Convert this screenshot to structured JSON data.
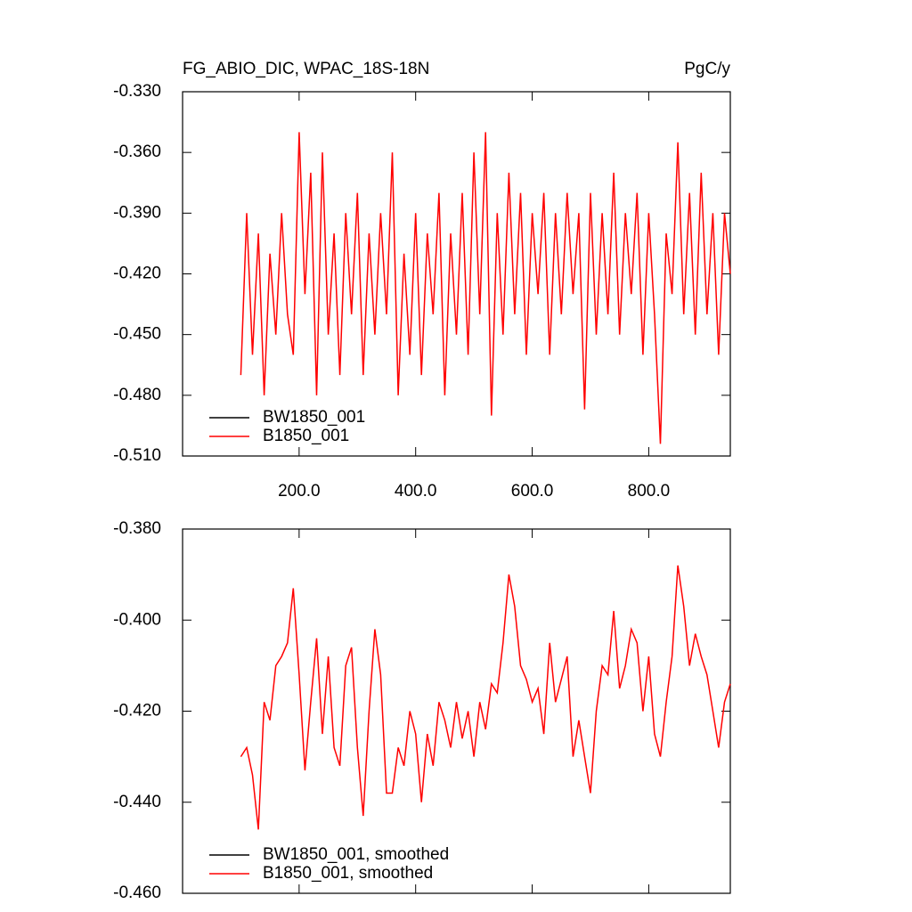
{
  "chart_data": [
    {
      "type": "line",
      "title": "FG_ABIO_DIC, WPAC_18S-18N",
      "units": "PgC/y",
      "x": [
        100,
        110,
        120,
        130,
        140,
        150,
        160,
        170,
        180,
        190,
        200,
        210,
        220,
        230,
        240,
        250,
        260,
        270,
        280,
        290,
        300,
        310,
        320,
        330,
        340,
        350,
        360,
        370,
        380,
        390,
        400,
        410,
        420,
        430,
        440,
        450,
        460,
        470,
        480,
        490,
        500,
        510,
        520,
        530,
        540,
        550,
        560,
        570,
        580,
        590,
        600,
        610,
        620,
        630,
        640,
        650,
        660,
        670,
        680,
        690,
        700,
        710,
        720,
        730,
        740,
        750,
        760,
        770,
        780,
        790,
        800,
        810,
        820,
        830,
        840,
        850,
        860,
        870,
        880,
        890,
        900,
        910,
        920,
        930,
        940
      ],
      "series": [
        {
          "name": "BW1850_001",
          "color": "#000000",
          "values": [
            null,
            null,
            null,
            null,
            null,
            null,
            null,
            null,
            null,
            null,
            null,
            null,
            null,
            null,
            null,
            null,
            null,
            null,
            null,
            null,
            null,
            null,
            null,
            null,
            null,
            null,
            null,
            null,
            null,
            null,
            null,
            null,
            null,
            null,
            null,
            null,
            null,
            null,
            null,
            null,
            null,
            null,
            null,
            null,
            null,
            null,
            null,
            null,
            null,
            null,
            null,
            null,
            null,
            null,
            null,
            null,
            null,
            null,
            null,
            null,
            null,
            null,
            null,
            null,
            null,
            null,
            null,
            null,
            null,
            null,
            null,
            null,
            null,
            null,
            null,
            null,
            null,
            null,
            null,
            null,
            null,
            null,
            null,
            null,
            null
          ]
        },
        {
          "name": "B1850_001",
          "color": "#ff0000",
          "values": [
            -0.47,
            -0.39,
            -0.46,
            -0.4,
            -0.48,
            -0.41,
            -0.45,
            -0.39,
            -0.44,
            -0.46,
            -0.35,
            -0.43,
            -0.37,
            -0.48,
            -0.36,
            -0.45,
            -0.4,
            -0.47,
            -0.39,
            -0.44,
            -0.38,
            -0.47,
            -0.4,
            -0.45,
            -0.39,
            -0.44,
            -0.36,
            -0.48,
            -0.41,
            -0.46,
            -0.39,
            -0.47,
            -0.4,
            -0.44,
            -0.38,
            -0.48,
            -0.4,
            -0.45,
            -0.38,
            -0.46,
            -0.36,
            -0.44,
            -0.35,
            -0.49,
            -0.39,
            -0.45,
            -0.37,
            -0.44,
            -0.38,
            -0.46,
            -0.39,
            -0.43,
            -0.38,
            -0.46,
            -0.39,
            -0.44,
            -0.38,
            -0.43,
            -0.39,
            -0.487,
            -0.38,
            -0.45,
            -0.39,
            -0.44,
            -0.37,
            -0.45,
            -0.39,
            -0.43,
            -0.38,
            -0.46,
            -0.39,
            -0.44,
            -0.504,
            -0.4,
            -0.43,
            -0.355,
            -0.44,
            -0.38,
            -0.45,
            -0.37,
            -0.44,
            -0.39,
            -0.46,
            -0.39,
            -0.42
          ]
        }
      ],
      "xlim": [
        0,
        940
      ],
      "xticks": [
        {
          "value": 200,
          "label": "200.0"
        },
        {
          "value": 400,
          "label": "400.0"
        },
        {
          "value": 600,
          "label": "600.0"
        },
        {
          "value": 800,
          "label": "800.0"
        }
      ],
      "ylim": [
        -0.51,
        -0.33
      ],
      "yticks": [
        {
          "value": -0.51,
          "label": "-0.510"
        },
        {
          "value": -0.48,
          "label": "-0.480"
        },
        {
          "value": -0.45,
          "label": "-0.450"
        },
        {
          "value": -0.42,
          "label": "-0.420"
        },
        {
          "value": -0.39,
          "label": "-0.390"
        },
        {
          "value": -0.36,
          "label": "-0.360"
        },
        {
          "value": -0.33,
          "label": "-0.330"
        }
      ],
      "legend": "lower left"
    },
    {
      "type": "line",
      "x": [
        100,
        110,
        120,
        130,
        140,
        150,
        160,
        170,
        180,
        190,
        200,
        210,
        220,
        230,
        240,
        250,
        260,
        270,
        280,
        290,
        300,
        310,
        320,
        330,
        340,
        350,
        360,
        370,
        380,
        390,
        400,
        410,
        420,
        430,
        440,
        450,
        460,
        470,
        480,
        490,
        500,
        510,
        520,
        530,
        540,
        550,
        560,
        570,
        580,
        590,
        600,
        610,
        620,
        630,
        640,
        650,
        660,
        670,
        680,
        690,
        700,
        710,
        720,
        730,
        740,
        750,
        760,
        770,
        780,
        790,
        800,
        810,
        820,
        830,
        840,
        850,
        860,
        870,
        880,
        890,
        900,
        910,
        920,
        930,
        940
      ],
      "series": [
        {
          "name": "BW1850_001, smoothed",
          "color": "#000000",
          "values": [
            null,
            null,
            null,
            null,
            null,
            null,
            null,
            null,
            null,
            null,
            null,
            null,
            null,
            null,
            null,
            null,
            null,
            null,
            null,
            null,
            null,
            null,
            null,
            null,
            null,
            null,
            null,
            null,
            null,
            null,
            null,
            null,
            null,
            null,
            null,
            null,
            null,
            null,
            null,
            null,
            null,
            null,
            null,
            null,
            null,
            null,
            null,
            null,
            null,
            null,
            null,
            null,
            null,
            null,
            null,
            null,
            null,
            null,
            null,
            null,
            null,
            null,
            null,
            null,
            null,
            null,
            null,
            null,
            null,
            null,
            null,
            null,
            null,
            null,
            null,
            null,
            null,
            null,
            null,
            null,
            null,
            null,
            null,
            null,
            null
          ]
        },
        {
          "name": "B1850_001, smoothed",
          "color": "#ff0000",
          "values": [
            -0.43,
            -0.428,
            -0.434,
            -0.446,
            -0.418,
            -0.422,
            -0.41,
            -0.408,
            -0.405,
            -0.393,
            -0.412,
            -0.433,
            -0.418,
            -0.404,
            -0.425,
            -0.408,
            -0.428,
            -0.432,
            -0.41,
            -0.406,
            -0.428,
            -0.443,
            -0.42,
            -0.402,
            -0.412,
            -0.438,
            -0.438,
            -0.428,
            -0.432,
            -0.42,
            -0.425,
            -0.44,
            -0.425,
            -0.432,
            -0.418,
            -0.422,
            -0.428,
            -0.418,
            -0.426,
            -0.42,
            -0.43,
            -0.418,
            -0.424,
            -0.414,
            -0.416,
            -0.405,
            -0.39,
            -0.397,
            -0.41,
            -0.413,
            -0.418,
            -0.415,
            -0.425,
            -0.405,
            -0.418,
            -0.413,
            -0.408,
            -0.43,
            -0.422,
            -0.43,
            -0.438,
            -0.42,
            -0.41,
            -0.412,
            -0.398,
            -0.415,
            -0.41,
            -0.402,
            -0.405,
            -0.42,
            -0.408,
            -0.425,
            -0.43,
            -0.418,
            -0.408,
            -0.388,
            -0.397,
            -0.41,
            -0.403,
            -0.408,
            -0.412,
            -0.42,
            -0.428,
            -0.418,
            -0.414
          ]
        }
      ],
      "xlim": [
        0,
        940
      ],
      "xticks": [
        200,
        400,
        600,
        800
      ],
      "xtick_labels": false,
      "ylim": [
        -0.46,
        -0.38
      ],
      "yticks": [
        {
          "value": -0.46,
          "label": "-0.460"
        },
        {
          "value": -0.44,
          "label": "-0.440"
        },
        {
          "value": -0.42,
          "label": "-0.420"
        },
        {
          "value": -0.4,
          "label": "-0.400"
        },
        {
          "value": -0.38,
          "label": "-0.380"
        }
      ],
      "legend": "lower left"
    }
  ]
}
